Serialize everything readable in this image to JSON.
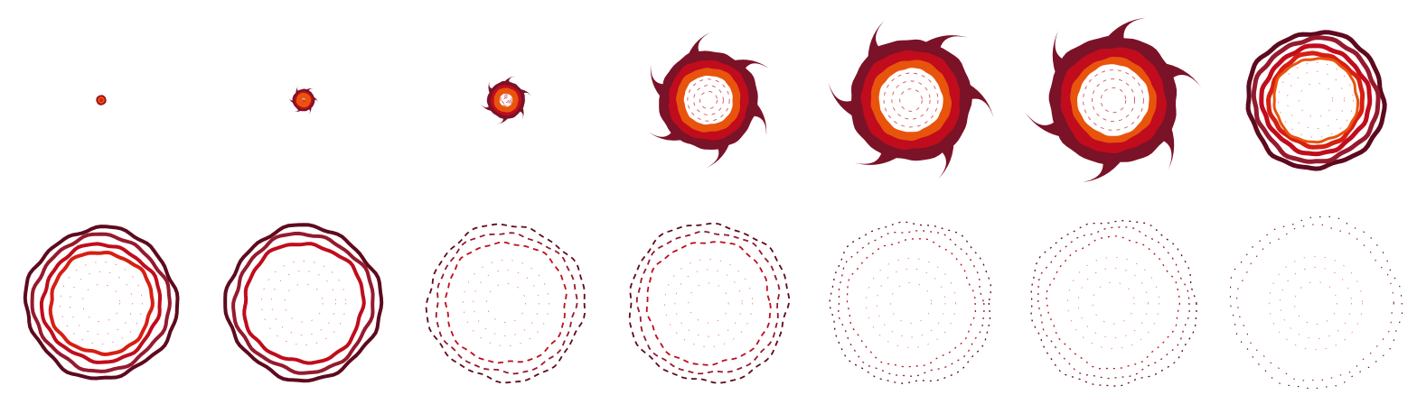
{
  "colors": {
    "background": "#ffffff",
    "dark_maroon": "#7a1228",
    "maroon": "#961a2e",
    "crimson": "#c00c1c",
    "red": "#d61f12",
    "orange": "#e8540c",
    "dark_ring": "#5e0a1e"
  },
  "grid": {
    "rows": 2,
    "columns": 7
  },
  "frames": [
    {
      "label": "",
      "stage": "solid",
      "growth": 0.06,
      "layers": 3,
      "filaments": false,
      "ring_count": 0,
      "hollow": 0.0
    },
    {
      "label": "",
      "stage": "solid",
      "growth": 0.13,
      "layers": 4,
      "filaments": true,
      "ring_count": 0,
      "hollow": 0.15
    },
    {
      "label": "",
      "stage": "solid",
      "growth": 0.22,
      "layers": 4,
      "filaments": true,
      "ring_count": 0,
      "hollow": 0.35
    },
    {
      "label": "",
      "stage": "solid",
      "growth": 0.58,
      "layers": 4,
      "filaments": true,
      "ring_count": 0,
      "hollow": 0.5
    },
    {
      "label": "",
      "stage": "solid",
      "growth": 0.72,
      "layers": 4,
      "filaments": true,
      "ring_count": 0,
      "hollow": 0.52
    },
    {
      "label": "",
      "stage": "solid",
      "growth": 0.76,
      "layers": 4,
      "filaments": true,
      "ring_count": 0,
      "hollow": 0.55
    },
    {
      "label": "",
      "stage": "rings",
      "growth": 0.8,
      "layers": 4,
      "filaments": false,
      "ring_count": 4,
      "hollow": 0.7
    },
    {
      "label": "",
      "stage": "rings",
      "growth": 0.88,
      "layers": 4,
      "filaments": false,
      "ring_count": 4,
      "hollow": 0.72
    },
    {
      "label": "",
      "stage": "rings",
      "growth": 0.9,
      "layers": 3,
      "filaments": false,
      "ring_count": 3,
      "hollow": 0.75
    },
    {
      "label": "",
      "stage": "dashed",
      "growth": 0.92,
      "layers": 3,
      "filaments": false,
      "ring_count": 3,
      "hollow": 0.8
    },
    {
      "label": "",
      "stage": "dashed",
      "growth": 0.94,
      "layers": 3,
      "filaments": false,
      "ring_count": 3,
      "hollow": 0.8
    },
    {
      "label": "",
      "stage": "dotted",
      "growth": 0.96,
      "layers": 3,
      "filaments": false,
      "ring_count": 3,
      "hollow": 0.8
    },
    {
      "label": "",
      "stage": "dotted",
      "growth": 0.98,
      "layers": 3,
      "filaments": false,
      "ring_count": 3,
      "hollow": 0.8
    },
    {
      "label": "",
      "stage": "sparse",
      "growth": 1.0,
      "layers": 2,
      "filaments": false,
      "ring_count": 2,
      "hollow": 0.8
    }
  ]
}
